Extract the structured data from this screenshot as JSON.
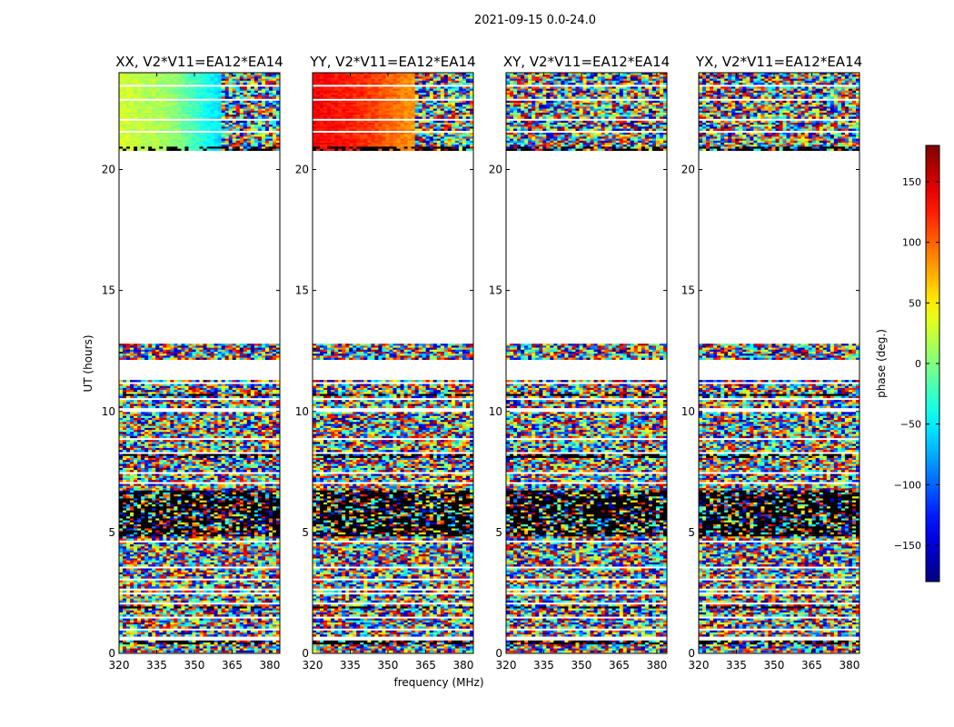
{
  "chart_data": {
    "type": "heatmap",
    "suptitle": "2021-09-15 0.0-24.0",
    "xlabel": "frequency (MHz)",
    "ylabel": "UT (hours)",
    "xlim": [
      320,
      384
    ],
    "ylim": [
      0,
      24
    ],
    "xticks": [
      320,
      335,
      350,
      365,
      380
    ],
    "yticks": [
      0,
      5,
      10,
      15,
      20
    ],
    "colorbar": {
      "label": "phase (deg.)",
      "range": [
        -180,
        180
      ],
      "ticks": [
        150,
        100,
        50,
        0,
        -50,
        -100,
        -150
      ],
      "tick_labels": [
        "150",
        "100",
        "50",
        "0",
        "−50",
        "−100",
        "−150"
      ],
      "colormap": "jet",
      "colors": [
        "#00007f",
        "#0000ff",
        "#007fff",
        "#00ffff",
        "#7fff7f",
        "#ffff00",
        "#ff7f00",
        "#ff0000",
        "#7f0000"
      ]
    },
    "panels": [
      {
        "title": "XX, V2*V11=EA12*EA14",
        "smooth_edge_phase": [
          30,
          10,
          -60
        ],
        "smooth_until_mhz": 361
      },
      {
        "title": "YY, V2*V11=EA12*EA14",
        "smooth_edge_phase": [
          140,
          120,
          80
        ],
        "smooth_until_mhz": 361
      },
      {
        "title": "XY, V2*V11=EA12*EA14",
        "smooth_edge_phase": null,
        "smooth_until_mhz": null
      },
      {
        "title": "YX, V2*V11=EA12*EA14",
        "smooth_edge_phase": null,
        "smooth_until_mhz": null
      }
    ],
    "data_blocks_ut": [
      [
        0.1,
        2.6
      ],
      [
        2.7,
        6.9
      ],
      [
        6.9,
        11.3
      ],
      [
        12.2,
        12.8
      ],
      [
        20.8,
        24.0
      ]
    ],
    "blank_rows_ut": [
      0.65,
      1.0,
      1.55,
      2.1,
      2.55,
      3.1,
      3.6,
      4.7,
      7.1,
      7.5,
      8.35,
      8.9,
      10.1,
      10.55,
      11.2,
      21.6,
      22.1,
      22.9,
      23.5
    ],
    "dark_rows_ut": [
      [
        4.9,
        6.8
      ],
      [
        0.45,
        0.6
      ],
      [
        1.9,
        2.0
      ],
      [
        8.15,
        8.25
      ],
      [
        10.7,
        10.75
      ],
      [
        20.85,
        21.0
      ]
    ],
    "dense_text_ut": [
      [
        6.3,
        6.6
      ]
    ]
  }
}
